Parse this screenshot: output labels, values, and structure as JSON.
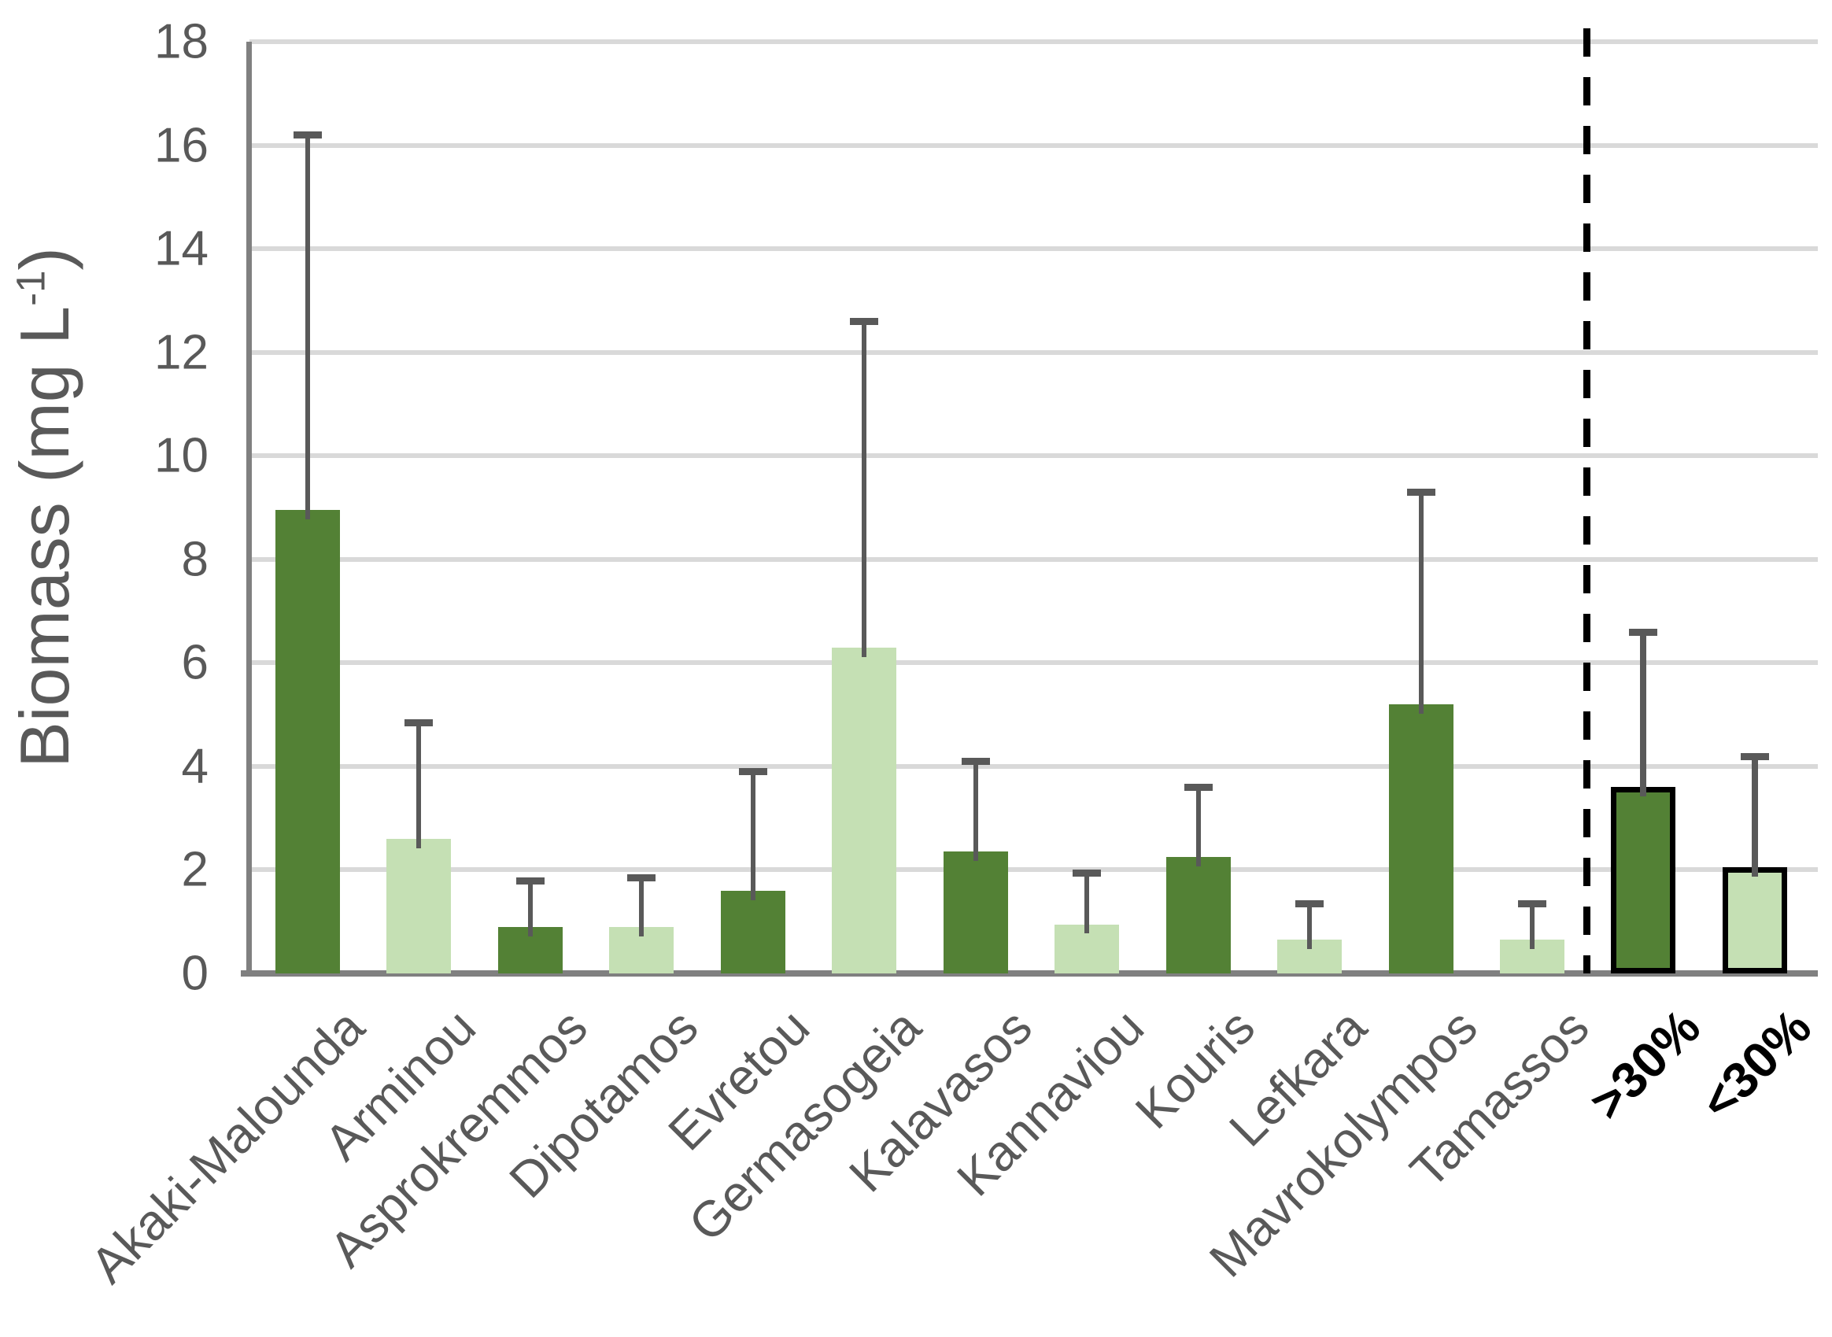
{
  "chart_data": {
    "type": "bar",
    "title": "",
    "ylabel": {
      "main": "Biomass (mg L",
      "sup": "-1",
      "close": ")"
    },
    "ylim": [
      0,
      18
    ],
    "ytick_step": 2,
    "ytick_labels": [
      "0",
      "2",
      "4",
      "6",
      "8",
      "10",
      "12",
      "14",
      "16",
      "18"
    ],
    "grid": true,
    "legend": "none",
    "categories": [
      "Akaki-Malounda",
      "Arminou",
      "Asprokremmos",
      "Dipotamos",
      "Evretou",
      "Germasogeia",
      "Kalavasos",
      "Kannaviou",
      "Kouris",
      "Lefkara",
      "Mavrokolympos",
      "Tamassos",
      ">30%",
      "<30%"
    ],
    "bars": [
      {
        "label": "Akaki-Malounda",
        "value": 8.95,
        "error_top": 16.2,
        "shade": "dark",
        "outlined": false
      },
      {
        "label": "Arminou",
        "value": 2.6,
        "error_top": 4.85,
        "shade": "light",
        "outlined": false
      },
      {
        "label": "Asprokremmos",
        "value": 0.9,
        "error_top": 1.8,
        "shade": "dark",
        "outlined": false
      },
      {
        "label": "Dipotamos",
        "value": 0.9,
        "error_top": 1.85,
        "shade": "light",
        "outlined": false
      },
      {
        "label": "Evretou",
        "value": 1.6,
        "error_top": 3.9,
        "shade": "dark",
        "outlined": false
      },
      {
        "label": "Germasogeia",
        "value": 6.3,
        "error_top": 12.6,
        "shade": "light",
        "outlined": false
      },
      {
        "label": "Kalavasos",
        "value": 2.35,
        "error_top": 4.1,
        "shade": "dark",
        "outlined": false
      },
      {
        "label": "Kannaviou",
        "value": 0.95,
        "error_top": 1.95,
        "shade": "light",
        "outlined": false
      },
      {
        "label": "Kouris",
        "value": 2.25,
        "error_top": 3.6,
        "shade": "dark",
        "outlined": false
      },
      {
        "label": "Lefkara",
        "value": 0.65,
        "error_top": 1.35,
        "shade": "light",
        "outlined": false
      },
      {
        "label": "Mavrokolympos",
        "value": 5.2,
        "error_top": 9.3,
        "shade": "dark",
        "outlined": false
      },
      {
        "label": "Tamassos",
        "value": 0.65,
        "error_top": 1.35,
        "shade": "light",
        "outlined": false
      },
      {
        "label": ">30%",
        "value": 3.6,
        "error_top": 6.6,
        "shade": "dark",
        "outlined": true
      },
      {
        "label": "<30%",
        "value": 2.05,
        "error_top": 4.2,
        "shade": "light",
        "outlined": true
      }
    ],
    "separator": {
      "style": "dashed",
      "between": [
        "Tamassos",
        ">30%"
      ],
      "color": "#000000"
    },
    "colors": {
      "bar_dark": "#538135",
      "bar_light": "#C5E0B4",
      "bar_outline": "#000000",
      "error_bar": "#595959",
      "gridline": "#D9D9D9",
      "axis_line": "#808080",
      "tick_text": "#595959",
      "category_text": "#595959",
      "summary_category_text": "#000000",
      "background": "#FFFFFF"
    }
  }
}
